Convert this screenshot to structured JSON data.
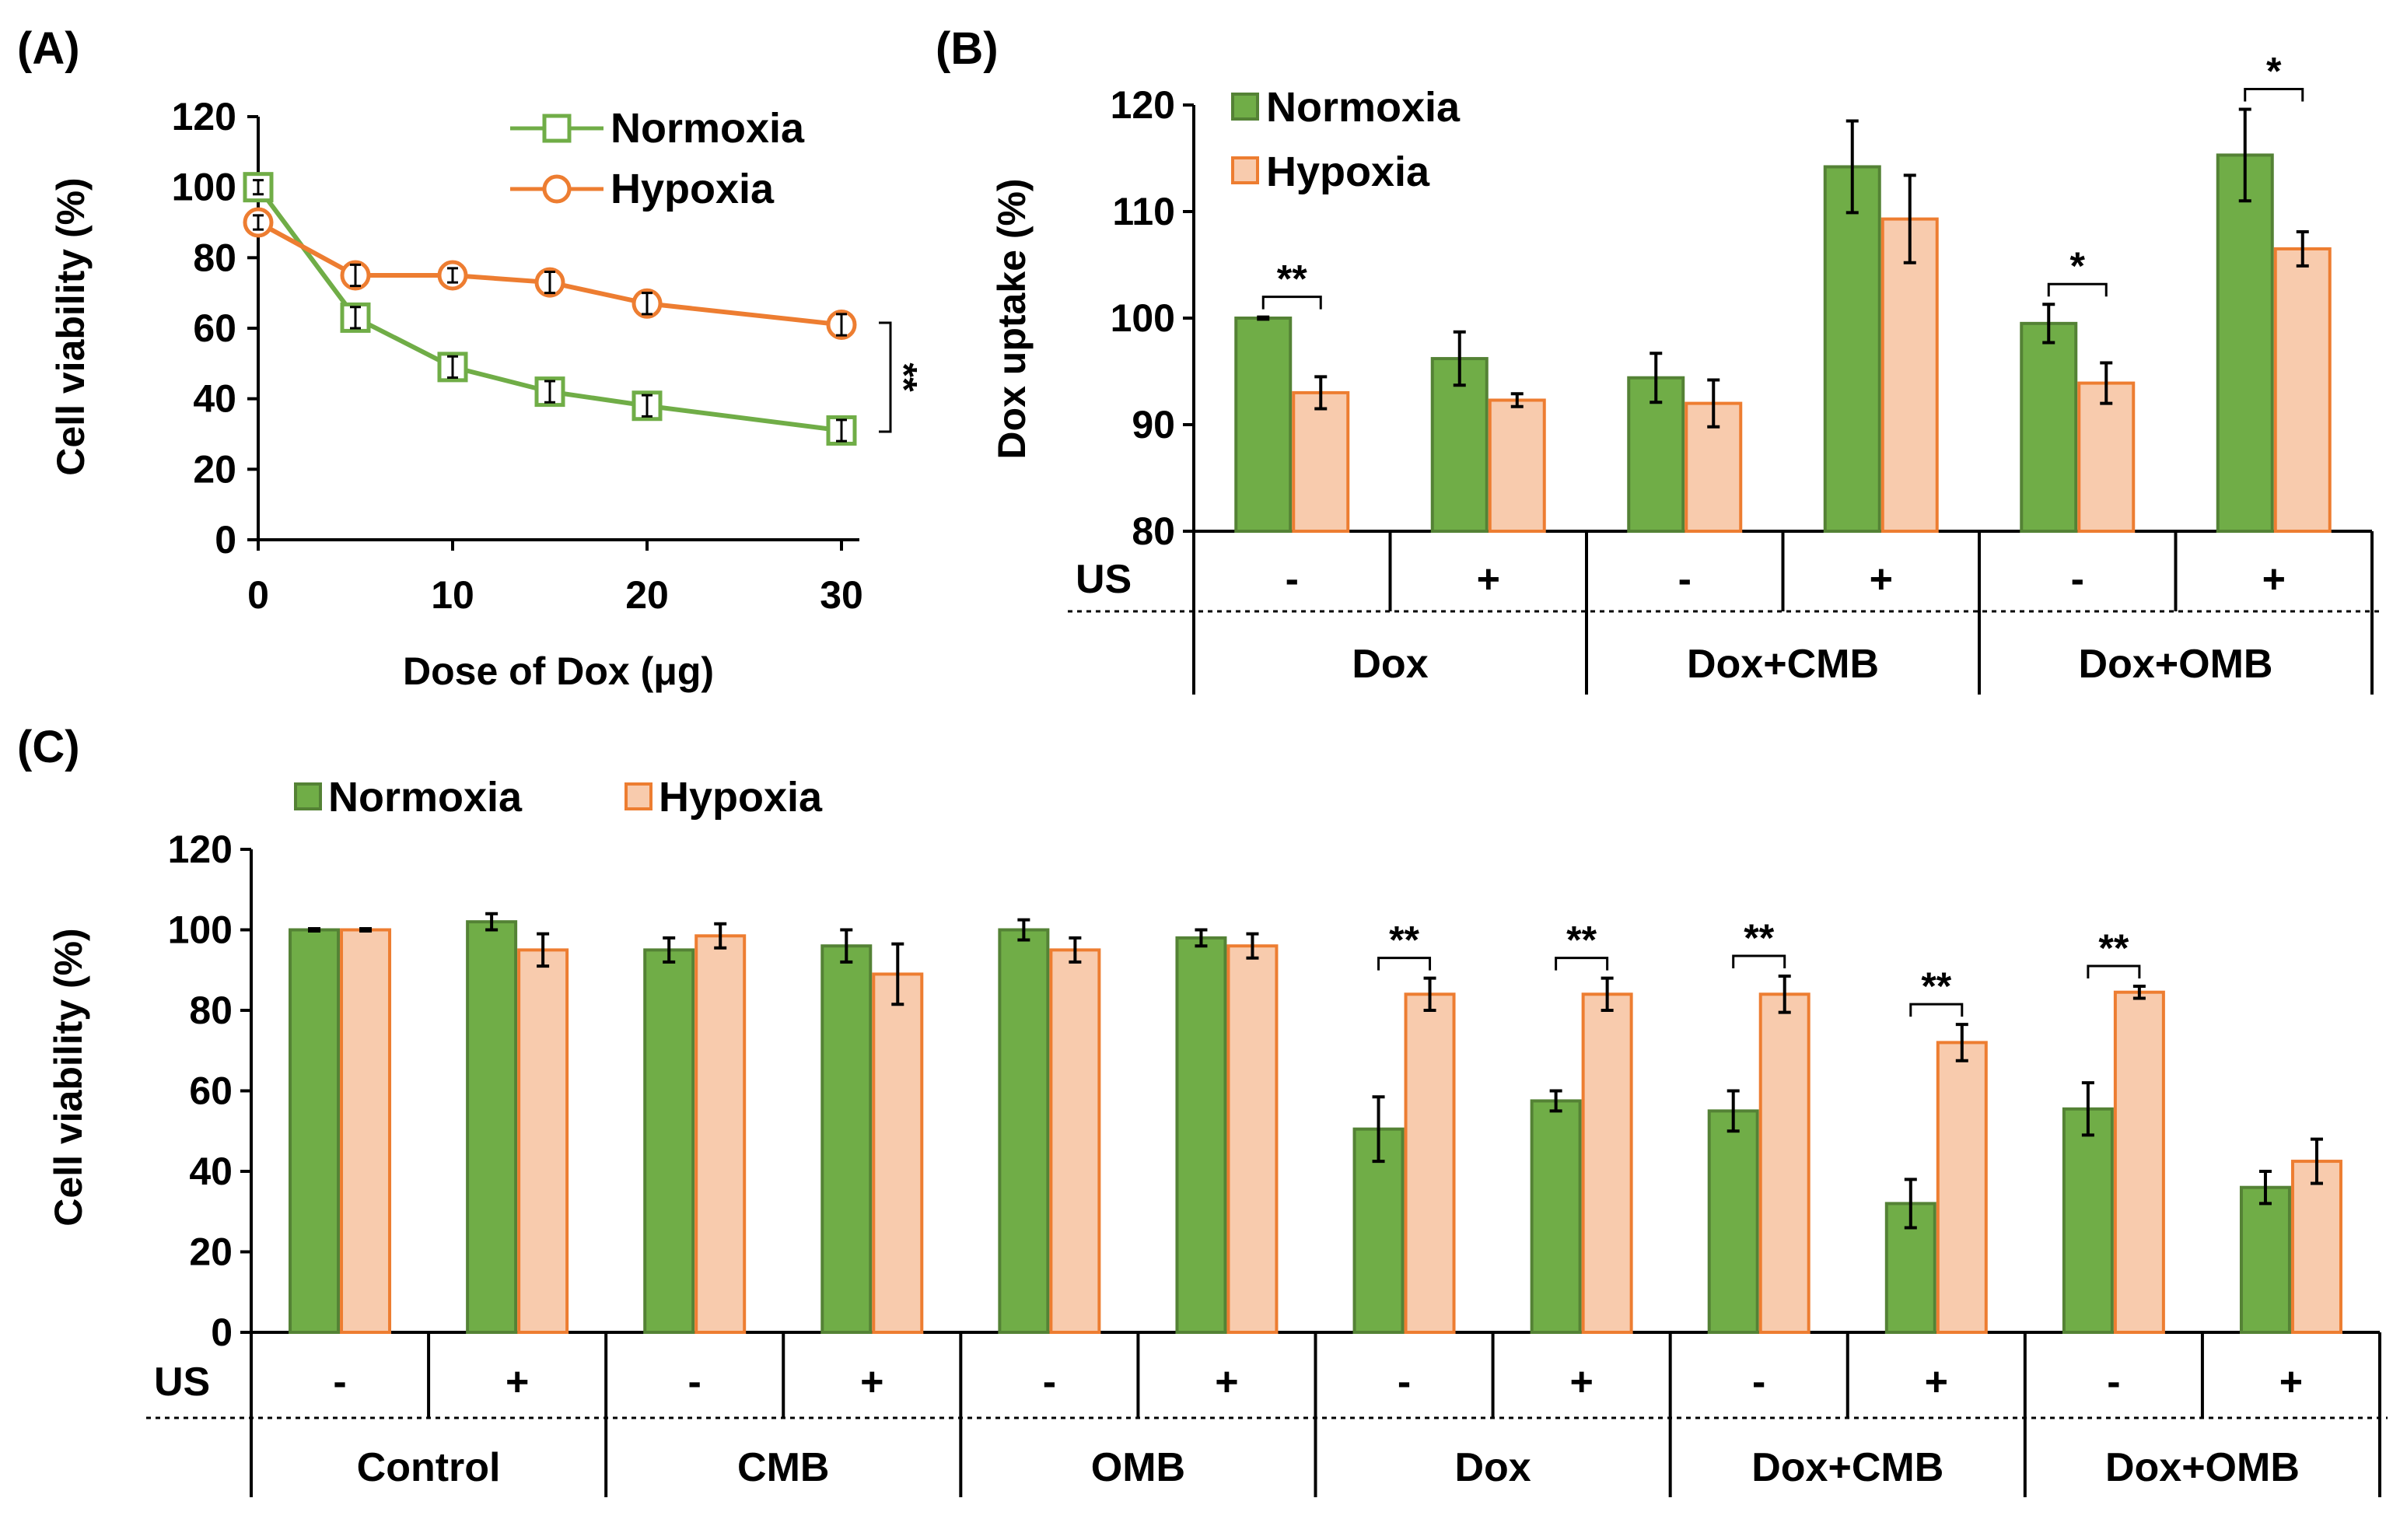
{
  "colors": {
    "normoxia_fill": "#70AD47",
    "normoxia_stroke": "#548235",
    "normoxia_line": "#70AD47",
    "hypoxia_fill": "#F8CBAD",
    "hypoxia_stroke": "#ED7D31",
    "hypoxia_line": "#ED7D31"
  },
  "chart_data": [
    {
      "panel": "(A)",
      "type": "line",
      "xlabel": "Dose of Dox (μg)",
      "ylabel": "Cell viability (%)",
      "xlim": [
        0,
        30
      ],
      "ylim": [
        0,
        120
      ],
      "xticks": [
        "0",
        "10",
        "20",
        "30"
      ],
      "yticks": [
        "0",
        "20",
        "40",
        "60",
        "80",
        "100",
        "120"
      ],
      "legend": "top-right",
      "x": [
        0,
        5,
        10,
        15,
        20,
        30
      ],
      "series": [
        {
          "name": "Normoxia",
          "marker": "square",
          "values": [
            100,
            63,
            49,
            42,
            38,
            31
          ],
          "errors": [
            2,
            3,
            3,
            3,
            3,
            3
          ]
        },
        {
          "name": "Hypoxia",
          "marker": "circle",
          "values": [
            90,
            75,
            75,
            73,
            67,
            61
          ],
          "errors": [
            2,
            3,
            2,
            3,
            3,
            3
          ]
        }
      ],
      "significance": {
        "label": "**",
        "between": "series at x=30"
      }
    },
    {
      "panel": "(B)",
      "type": "bar",
      "ylabel": "Dox uptake (%)",
      "ylim": [
        80,
        120
      ],
      "yticks": [
        "80",
        "90",
        "100",
        "110",
        "120"
      ],
      "legend": "top-left",
      "row_label": "US",
      "us": [
        "-",
        "+",
        "-",
        "+",
        "-",
        "+"
      ],
      "groups": [
        "Dox",
        "Dox+CMB",
        "Dox+OMB"
      ],
      "series": [
        {
          "name": "Normoxia",
          "values": [
            100,
            96.2,
            94.4,
            114.2,
            99.5,
            115.3
          ],
          "errors": [
            0.1,
            2.5,
            2.3,
            4.3,
            1.8,
            4.3
          ]
        },
        {
          "name": "Hypoxia",
          "values": [
            93,
            92.3,
            92,
            109.3,
            93.9,
            106.5
          ],
          "errors": [
            1.5,
            0.6,
            2.2,
            4.1,
            1.9,
            1.6
          ]
        }
      ],
      "significance": [
        {
          "index": 0,
          "label": "**"
        },
        {
          "index": 4,
          "label": "*"
        },
        {
          "index": 5,
          "label": "*"
        }
      ]
    },
    {
      "panel": "(C)",
      "type": "bar",
      "ylabel": "Cell viability (%)",
      "ylim": [
        0,
        120
      ],
      "yticks": [
        "0",
        "20",
        "40",
        "60",
        "80",
        "100",
        "120"
      ],
      "legend": "top-left",
      "row_label": "US",
      "us": [
        "-",
        "+",
        "-",
        "+",
        "-",
        "+",
        "-",
        "+",
        "-",
        "+",
        "-",
        "+"
      ],
      "groups": [
        "Control",
        "CMB",
        "OMB",
        "Dox",
        "Dox+CMB",
        "Dox+OMB"
      ],
      "series": [
        {
          "name": "Normoxia",
          "values": [
            100,
            102,
            95,
            96,
            100,
            98,
            50.5,
            57.5,
            55,
            32,
            55.5,
            36
          ],
          "errors": [
            0.3,
            2,
            3,
            4,
            2.5,
            2,
            8,
            2.5,
            5,
            6,
            6.5,
            4
          ]
        },
        {
          "name": "Hypoxia",
          "values": [
            100,
            95,
            98.5,
            89,
            95,
            96,
            84,
            84,
            84,
            72,
            84.5,
            42.5
          ],
          "errors": [
            0.3,
            4,
            3,
            7.5,
            3,
            3,
            4,
            4,
            4.5,
            4.5,
            1.5,
            5.5
          ]
        }
      ],
      "significance": [
        {
          "index": 6,
          "label": "**"
        },
        {
          "index": 7,
          "label": "**"
        },
        {
          "index": 8,
          "label": "**"
        },
        {
          "index": 9,
          "label": "**"
        },
        {
          "index": 10,
          "label": "**"
        }
      ]
    }
  ]
}
